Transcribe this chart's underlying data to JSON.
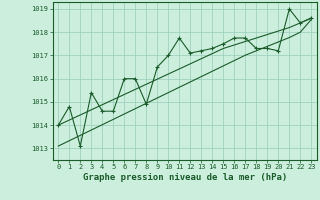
{
  "background_color": "#cceedd",
  "grid_color": "#99ccbb",
  "line_color": "#1a5c2a",
  "x_data": [
    0,
    1,
    2,
    3,
    4,
    5,
    6,
    7,
    8,
    9,
    10,
    11,
    12,
    13,
    14,
    15,
    16,
    17,
    18,
    19,
    20,
    21,
    22,
    23
  ],
  "y_main": [
    1014.0,
    1014.8,
    1013.1,
    1015.4,
    1014.6,
    1014.6,
    1016.0,
    1016.0,
    1014.9,
    1016.5,
    1017.0,
    1017.75,
    1017.1,
    1017.2,
    1017.3,
    1017.5,
    1017.75,
    1017.75,
    1017.3,
    1017.3,
    1017.2,
    1019.0,
    1018.4,
    1018.6
  ],
  "y_trend1": [
    1014.0,
    1014.22,
    1014.44,
    1014.66,
    1014.88,
    1015.1,
    1015.32,
    1015.54,
    1015.76,
    1015.98,
    1016.2,
    1016.42,
    1016.64,
    1016.86,
    1017.08,
    1017.3,
    1017.45,
    1017.6,
    1017.75,
    1017.9,
    1018.05,
    1018.2,
    1018.4,
    1018.62
  ],
  "y_trend2": [
    1013.1,
    1013.33,
    1013.56,
    1013.79,
    1014.02,
    1014.25,
    1014.48,
    1014.71,
    1014.94,
    1015.17,
    1015.4,
    1015.63,
    1015.86,
    1016.09,
    1016.32,
    1016.55,
    1016.78,
    1017.01,
    1017.2,
    1017.39,
    1017.58,
    1017.77,
    1018.0,
    1018.55
  ],
  "ylim_min": 1012.5,
  "ylim_max": 1019.3,
  "yticks": [
    1013,
    1014,
    1015,
    1016,
    1017,
    1018,
    1019
  ],
  "xticks": [
    0,
    1,
    2,
    3,
    4,
    5,
    6,
    7,
    8,
    9,
    10,
    11,
    12,
    13,
    14,
    15,
    16,
    17,
    18,
    19,
    20,
    21,
    22,
    23
  ],
  "xlabel": "Graphe pression niveau de la mer (hPa)",
  "tick_fontsize": 5.0,
  "xlabel_fontsize": 6.5,
  "marker_size": 2.5,
  "line_width": 0.8
}
